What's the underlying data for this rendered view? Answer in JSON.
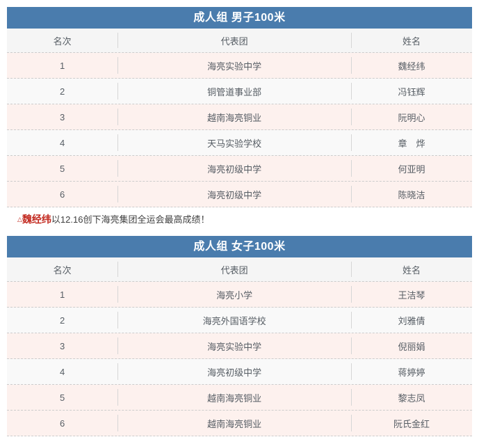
{
  "colors": {
    "header_blue": "#4a7cad",
    "row_highlight_pink": "#fdf1ee",
    "row_plain": "#f9f9f9",
    "thead_bg": "#f5f5f5",
    "accent_red": "#c2291f",
    "table_text": "#565d64"
  },
  "tables": [
    {
      "title": "成人组 男子100米",
      "columns": [
        "名次",
        "代表团",
        "姓名"
      ],
      "rows": [
        {
          "rank": "1",
          "team": "海亮实验中学",
          "name": "魏经纬",
          "highlighted": true
        },
        {
          "rank": "2",
          "team": "铜管道事业部",
          "name": "冯钰辉",
          "highlighted": false
        },
        {
          "rank": "3",
          "team": "越南海亮铜业",
          "name": "阮明心",
          "highlighted": true
        },
        {
          "rank": "4",
          "team": "天马实验学校",
          "name": "章　烨",
          "highlighted": false
        },
        {
          "rank": "5",
          "team": "海亮初级中学",
          "name": "何亚明",
          "highlighted": true
        },
        {
          "rank": "6",
          "team": "海亮初级中学",
          "name": "陈晓洁",
          "highlighted": true
        }
      ]
    },
    {
      "title": "成人组 女子100米",
      "columns": [
        "名次",
        "代表团",
        "姓名"
      ],
      "rows": [
        {
          "rank": "1",
          "team": "海亮小学",
          "name": "王洁琴",
          "highlighted": true
        },
        {
          "rank": "2",
          "team": "海亮外国语学校",
          "name": "刘雅倩",
          "highlighted": false
        },
        {
          "rank": "3",
          "team": "海亮实验中学",
          "name": "倪丽娟",
          "highlighted": true
        },
        {
          "rank": "4",
          "team": "海亮初级中学",
          "name": "蒋婷婷",
          "highlighted": false
        },
        {
          "rank": "5",
          "team": "越南海亮铜业",
          "name": "黎志凤",
          "highlighted": true
        },
        {
          "rank": "6",
          "team": "越南海亮铜业",
          "name": "阮氏金红",
          "highlighted": true
        }
      ]
    }
  ],
  "note": {
    "marker": "△",
    "highlight": "魏经纬",
    "text": "以12.16创下海亮集团全运会最高成绩！"
  }
}
